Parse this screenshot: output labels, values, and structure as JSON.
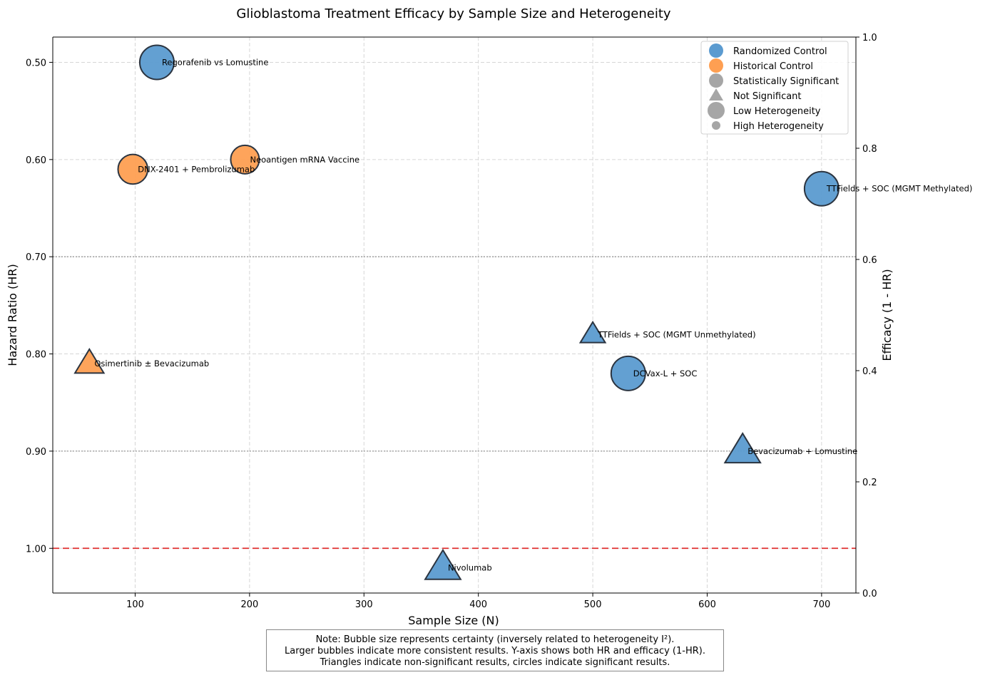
{
  "chart_data": {
    "type": "scatter",
    "title": "Glioblastoma Treatment Efficacy by Sample Size and Heterogeneity",
    "xlabel": "Sample Size (N)",
    "ylabel": "Hazard Ratio (HR)",
    "ylabel_right": "Efficacy (1 - HR)",
    "xlim": [
      28,
      730
    ],
    "ylim": [
      0.474,
      1.046
    ],
    "y_inverted": true,
    "ylim_right": [
      0,
      1
    ],
    "x_ticks": [
      100,
      200,
      300,
      400,
      500,
      600,
      700
    ],
    "y_ticks": [
      0.5,
      0.6,
      0.7,
      0.8,
      0.9,
      1.0
    ],
    "y_tick_labels": [
      "0.50",
      "0.60",
      "0.70",
      "0.80",
      "0.90",
      "1.00"
    ],
    "y_ticks_right": [
      0.0,
      0.2,
      0.4,
      0.6,
      0.8,
      1.0
    ],
    "y_tick_labels_right": [
      "0.0",
      "0.2",
      "0.4",
      "0.6",
      "0.8",
      "1.0"
    ],
    "grid": true,
    "reference_lines": [
      {
        "hr": 0.7,
        "style": "dotted",
        "color": "#999999"
      },
      {
        "hr": 0.9,
        "style": "dotted",
        "color": "#999999"
      },
      {
        "hr": 1.0,
        "style": "dashed",
        "color": "#e03030"
      }
    ],
    "colors": {
      "randomized": "#5b9bd0",
      "historical": "#fe9f52"
    },
    "points": [
      {
        "label": "Regorafenib vs Lomustine",
        "n": 119,
        "hr": 0.5,
        "control": "randomized",
        "significant": true,
        "certainty": 1.0
      },
      {
        "label": "DNX-2401 + Pembrolizumab",
        "n": 98,
        "hr": 0.61,
        "control": "historical",
        "significant": true,
        "certainty": 0.8
      },
      {
        "label": "Neoantigen mRNA Vaccine",
        "n": 196,
        "hr": 0.6,
        "control": "historical",
        "significant": true,
        "certainty": 0.75
      },
      {
        "label": "TTFields + SOC (MGMT Methylated)",
        "n": 700,
        "hr": 0.63,
        "control": "randomized",
        "significant": true,
        "certainty": 1.0
      },
      {
        "label": "TTFields + SOC (MGMT Unmethylated)",
        "n": 500,
        "hr": 0.78,
        "control": "randomized",
        "significant": false,
        "certainty": 0.45
      },
      {
        "label": "Osimertinib ± Bevacizumab",
        "n": 60,
        "hr": 0.81,
        "control": "historical",
        "significant": false,
        "certainty": 0.6
      },
      {
        "label": "DCVax-L + SOC",
        "n": 531,
        "hr": 0.82,
        "control": "randomized",
        "significant": true,
        "certainty": 1.0
      },
      {
        "label": "Bevacizumab + Lomustine",
        "n": 631,
        "hr": 0.9,
        "control": "randomized",
        "significant": false,
        "certainty": 0.85
      },
      {
        "label": "Nivolumab",
        "n": 369,
        "hr": 1.02,
        "control": "randomized",
        "significant": false,
        "certainty": 0.85
      }
    ],
    "legend": {
      "placement": "top-right",
      "entries": [
        {
          "label": "Randomized Control",
          "marker": "circle",
          "color": "#5b9bd0",
          "size": "medium"
        },
        {
          "label": "Historical Control",
          "marker": "circle",
          "color": "#fe9f52",
          "size": "medium"
        },
        {
          "label": "Statistically Significant",
          "marker": "circle",
          "color": "#a6a6a6",
          "size": "medium"
        },
        {
          "label": "Not Significant",
          "marker": "triangle",
          "color": "#a6a6a6",
          "size": "medium"
        },
        {
          "label": "Low Heterogeneity",
          "marker": "circle",
          "color": "#a6a6a6",
          "size": "large"
        },
        {
          "label": "High Heterogeneity",
          "marker": "circle",
          "color": "#a6a6a6",
          "size": "small"
        }
      ]
    }
  },
  "note": {
    "line1": "Note: Bubble size represents certainty (inversely related to heterogeneity I²).",
    "line2": "Larger bubbles indicate more consistent results. Y-axis shows both HR and efficacy (1-HR).",
    "line3": "Triangles indicate non-significant results, circles indicate significant results."
  }
}
